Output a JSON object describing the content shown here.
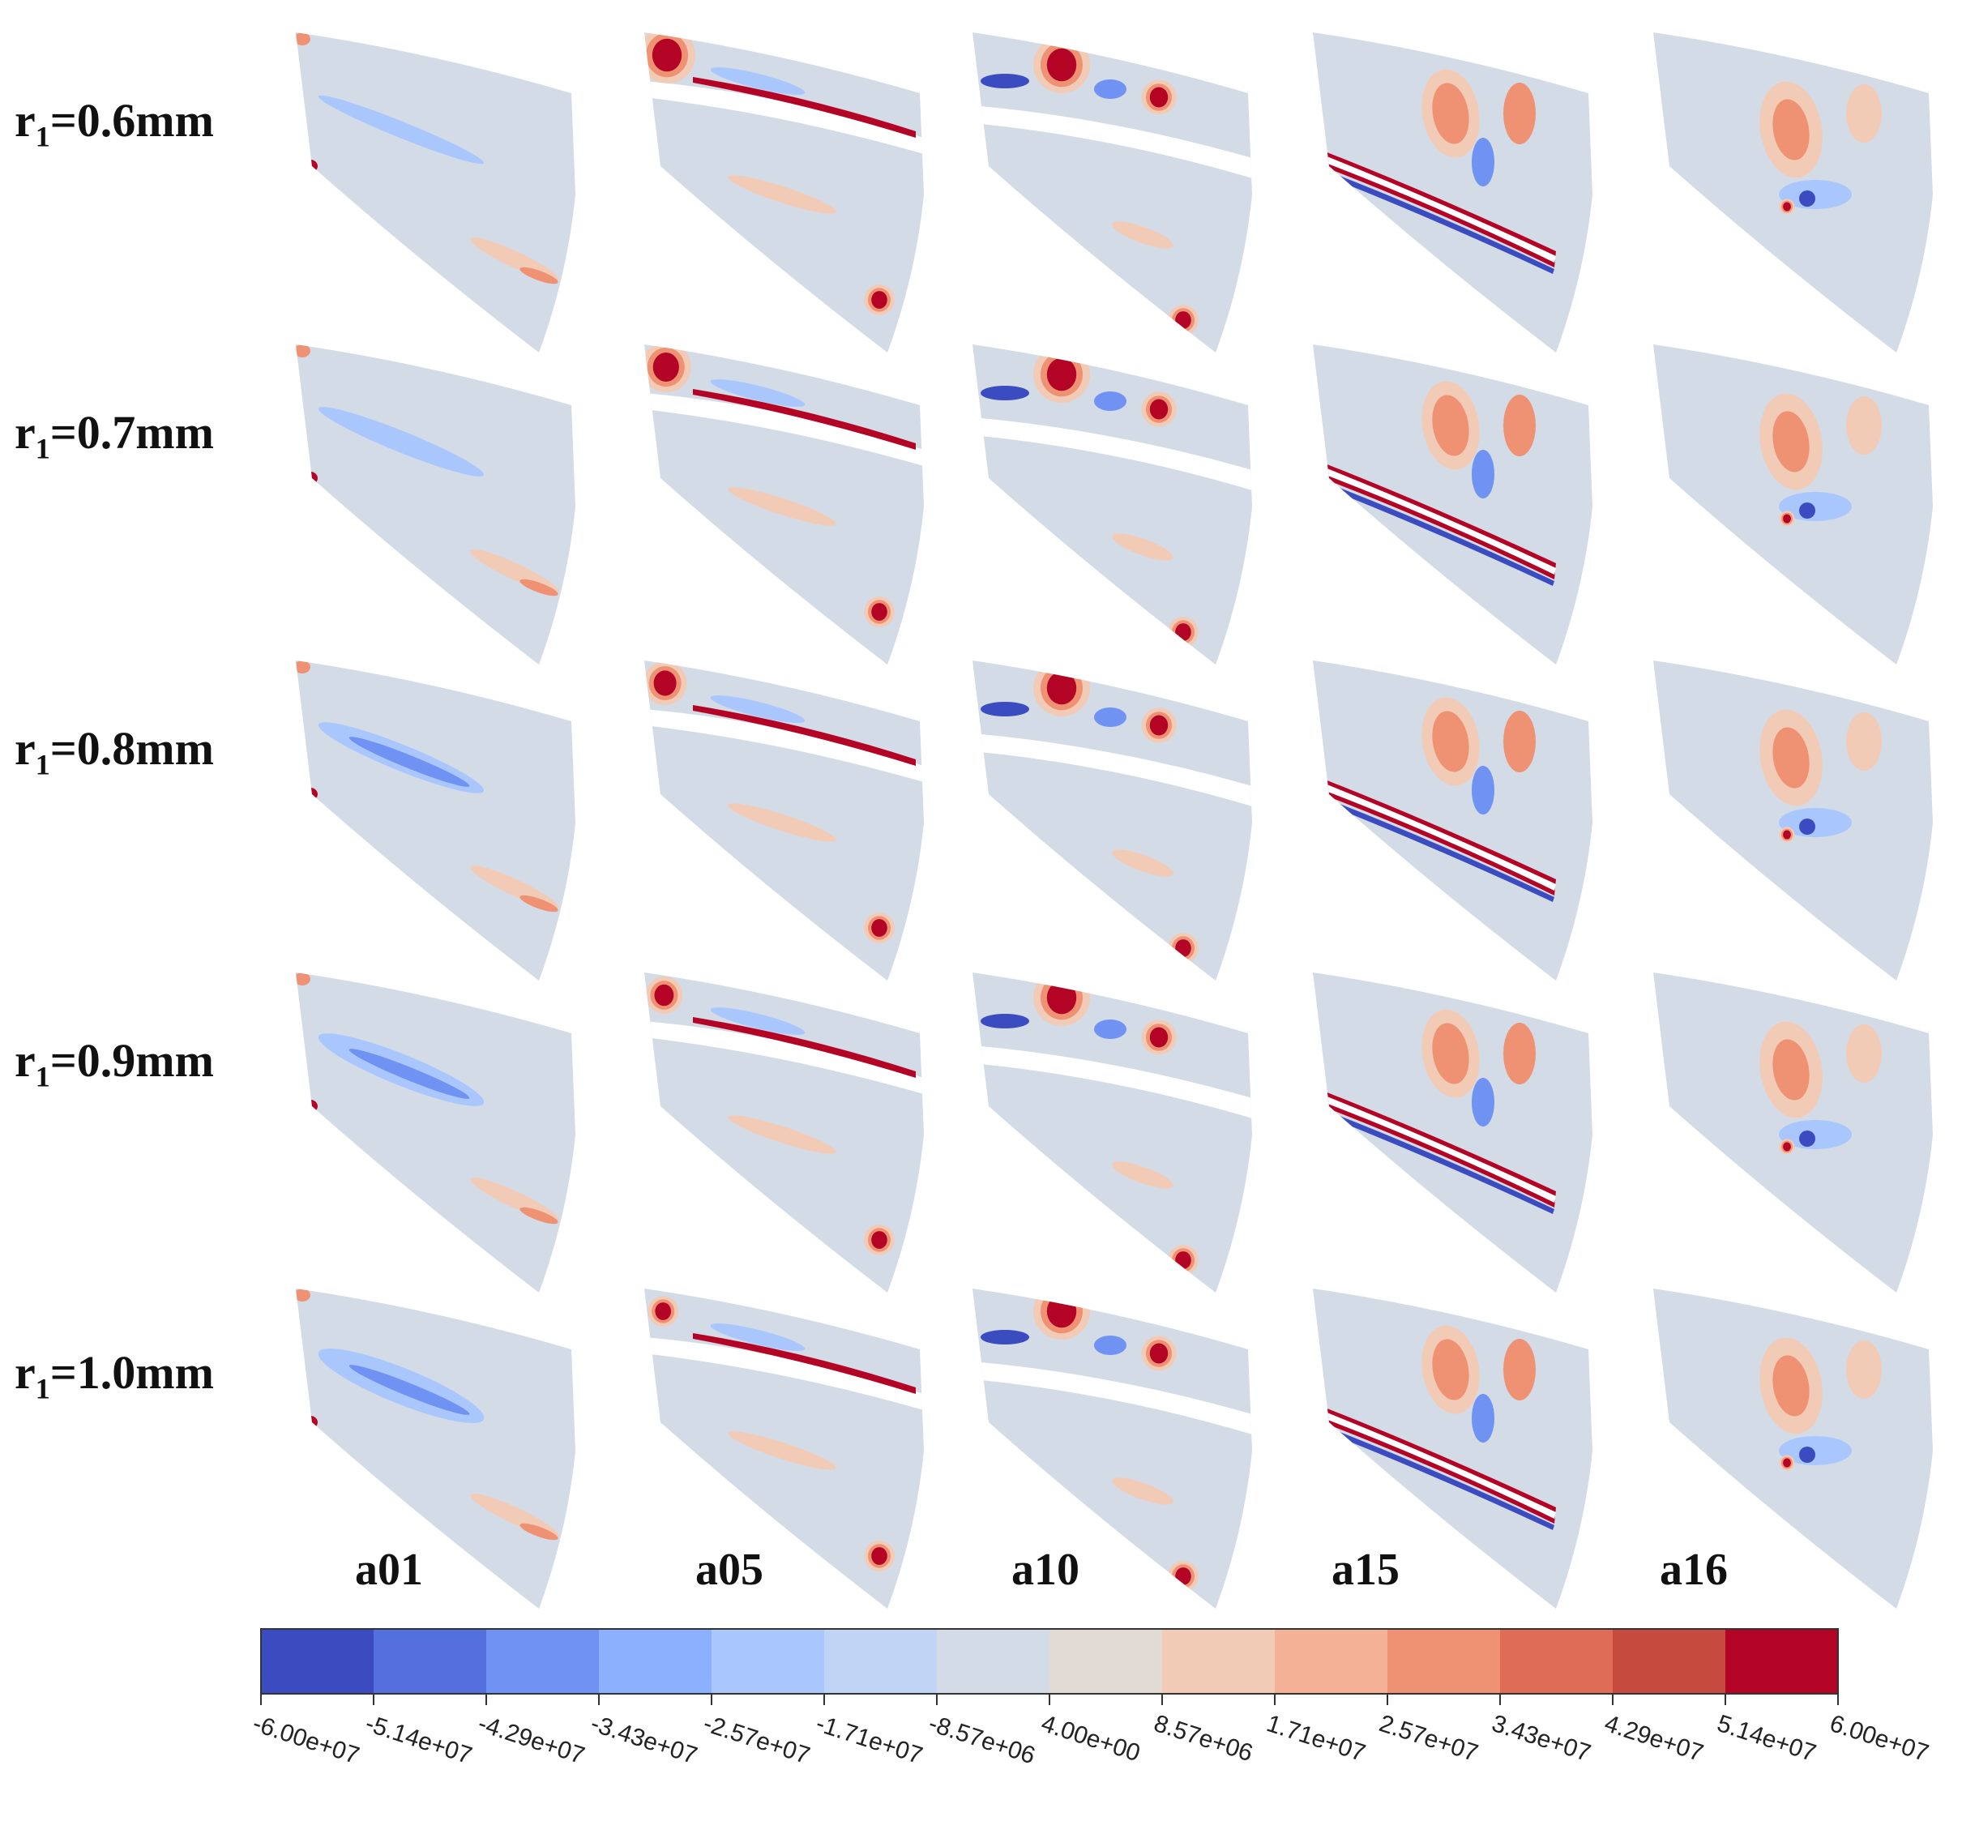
{
  "rows": [
    {
      "label_main": "r",
      "label_sub": "1",
      "label_value": "=0.6mm"
    },
    {
      "label_main": "r",
      "label_sub": "1",
      "label_value": "=0.7mm"
    },
    {
      "label_main": "r",
      "label_sub": "1",
      "label_value": "=0.8mm"
    },
    {
      "label_main": "r",
      "label_sub": "1",
      "label_value": "=0.9mm"
    },
    {
      "label_main": "r",
      "label_sub": "1",
      "label_value": "=1.0mm"
    }
  ],
  "columns": [
    {
      "label": "a01",
      "variant": "a01"
    },
    {
      "label": "a05",
      "variant": "a05"
    },
    {
      "label": "a10",
      "variant": "a10"
    },
    {
      "label": "a15",
      "variant": "a15"
    },
    {
      "label": "a16",
      "variant": "a16"
    }
  ],
  "colorbar": {
    "colors": [
      "#3b4cc0",
      "#5470de",
      "#6f92f3",
      "#8db0fe",
      "#aac7fd",
      "#c0d4f5",
      "#d3dbe7",
      "#e2dad5",
      "#f2cbb7",
      "#f5b196",
      "#ee9273",
      "#de6c56",
      "#c74a3f",
      "#b40426"
    ],
    "ticks": [
      "-6.00e+07",
      "-5.14e+07",
      "-4.29e+07",
      "-3.43e+07",
      "-2.57e+07",
      "-1.71e+07",
      "-8.57e+06",
      "4.00e+00",
      "8.57e+06",
      "1.71e+07",
      "2.57e+07",
      "3.43e+07",
      "4.29e+07",
      "5.14e+07",
      "6.00e+07"
    ]
  },
  "palette": {
    "background_field": "#d3dbe7",
    "light_blue": "#aac7fd",
    "mid_blue": "#6f92f3",
    "dark_blue": "#3b4cc0",
    "light_red": "#f2cbb7",
    "mid_red": "#ee9273",
    "dark_red": "#b40426"
  }
}
